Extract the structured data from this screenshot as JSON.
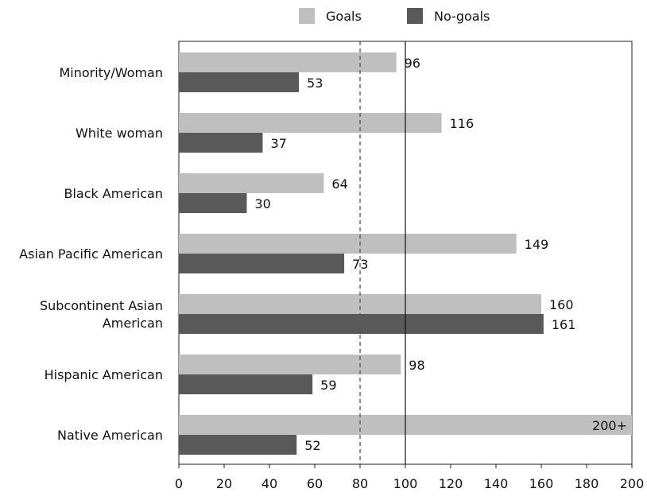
{
  "chart_data": {
    "type": "bar",
    "orientation": "horizontal",
    "categories": [
      [
        "Minority/Woman"
      ],
      [
        "White woman"
      ],
      [
        "Black American"
      ],
      [
        "Asian Pacific American"
      ],
      [
        "Subcontinent Asian",
        "American"
      ],
      [
        "Hispanic American"
      ],
      [
        "Native American"
      ]
    ],
    "series": [
      {
        "name": "Goals",
        "color": "#bfbfbf",
        "values": [
          96,
          116,
          64,
          149,
          160,
          98,
          200
        ],
        "labels": [
          "96",
          "116",
          "64",
          "149",
          "160",
          "98",
          "200+"
        ]
      },
      {
        "name": "No-goals",
        "color": "#595959",
        "values": [
          53,
          37,
          30,
          73,
          161,
          59,
          52
        ],
        "labels": [
          "53",
          "37",
          "30",
          "73",
          "161",
          "59",
          "52"
        ]
      }
    ],
    "xlim": [
      0,
      200
    ],
    "xticks": [
      0,
      20,
      40,
      60,
      80,
      100,
      120,
      140,
      160,
      180,
      200
    ],
    "reference_lines": [
      {
        "value": 80,
        "style": "dashed"
      },
      {
        "value": 100,
        "style": "solid"
      }
    ],
    "legend_position": "top"
  }
}
